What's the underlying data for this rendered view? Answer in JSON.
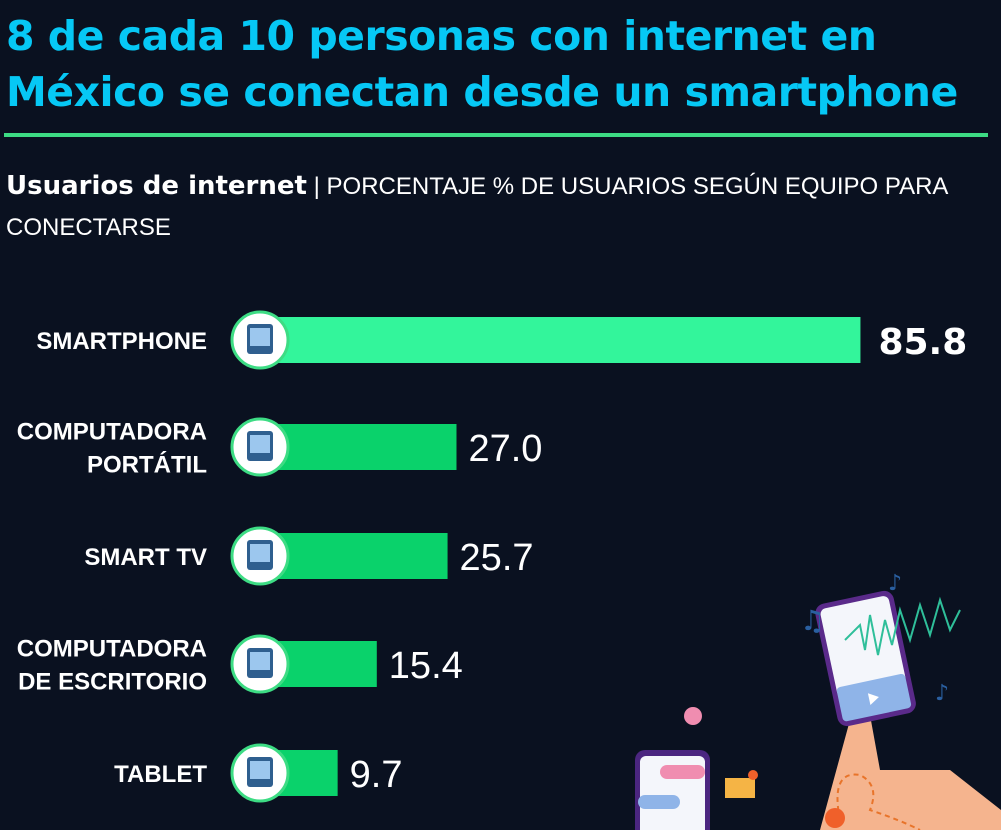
{
  "title": "8 de cada 10 personas con internet en México se conectan desde un smartphone",
  "subtitle_bold": "Usuarios de internet",
  "subtitle_sep": " | ",
  "subtitle_rest": "PORCENTAJE % DE USUARIOS SEGÚN EQUIPO PARA CONECTARSE",
  "colors": {
    "background": "#0a1120",
    "title": "#06c8f5",
    "highlight_bar": "#33f59b",
    "bar": "#0ad26b",
    "rule": "#3ddc84"
  },
  "chart_data": {
    "type": "bar",
    "orientation": "horizontal",
    "title": "8 de cada 10 personas con internet en México se conectan desde un smartphone",
    "categories": [
      {
        "label": [
          "SMARTPHONE"
        ],
        "icon": "smartphone-icon"
      },
      {
        "label": [
          "COMPUTADORA",
          "PORTÁTIL"
        ],
        "icon": "laptop-icon"
      },
      {
        "label": [
          "SMART TV"
        ],
        "icon": "tv-icon"
      },
      {
        "label": [
          "COMPUTADORA",
          "DE ESCRITORIO"
        ],
        "icon": "desktop-computer-icon"
      },
      {
        "label": [
          "TABLET"
        ],
        "icon": "tablet-icon"
      }
    ],
    "values": [
      85.8,
      27.0,
      25.7,
      15.4,
      9.7
    ],
    "value_labels": [
      "85.8",
      "27.0",
      "25.7",
      "15.4",
      "9.7"
    ],
    "unit": "%",
    "xlim": [
      0,
      100
    ],
    "grid": false,
    "highlight_index": 0
  }
}
